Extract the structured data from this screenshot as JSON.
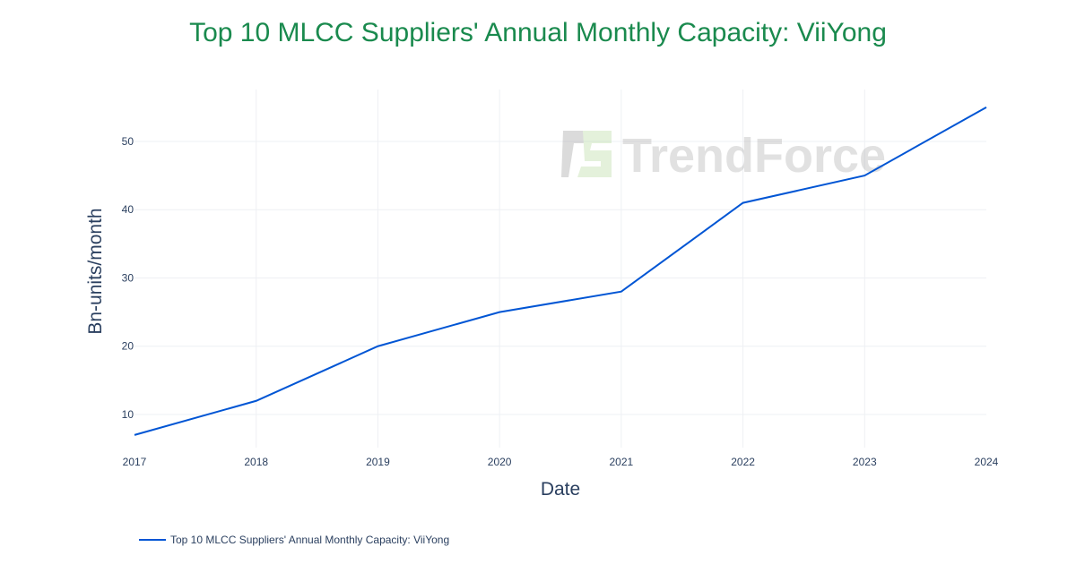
{
  "chart_data": {
    "type": "line",
    "title": "Top 10 MLCC Suppliers' Annual Monthly Capacity: ViiYong",
    "xlabel": "Date",
    "ylabel": "Bn-units/month",
    "x": [
      "2017",
      "2018",
      "2019",
      "2020",
      "2021",
      "2022",
      "2023",
      "2024"
    ],
    "series": [
      {
        "name": "Top 10 MLCC Suppliers' Annual Monthly Capacity: ViiYong",
        "values": [
          7,
          12,
          20,
          25,
          28,
          41,
          45,
          55
        ],
        "color": "#0055d4"
      }
    ],
    "yticks": [
      10,
      20,
      30,
      40,
      50
    ],
    "ylim": [
      5.15,
      57.6
    ],
    "grid": true,
    "legend": "bottom-left",
    "watermark": "TrendForce",
    "title_color": "#1a8a4e"
  }
}
